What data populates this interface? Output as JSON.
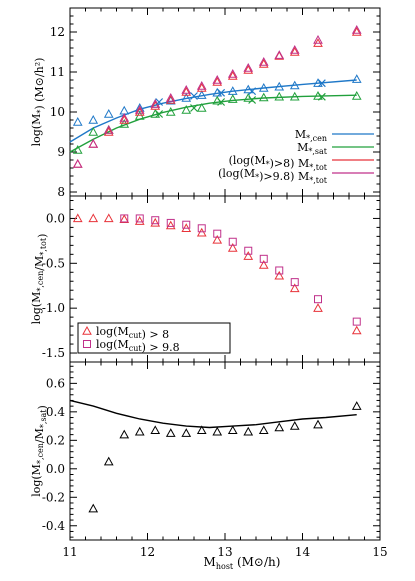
{
  "figure": {
    "xlabel": "M_host (M⊙/h)"
  },
  "chart_data": [
    {
      "type": "scatter",
      "panel": "top",
      "ylabel": "log(M*) (M⊙/h²)",
      "xlim": [
        11,
        15
      ],
      "ylim": [
        7.9,
        12.6
      ],
      "xticks": [
        11,
        12,
        13,
        14,
        15
      ],
      "yticks": [
        8,
        9,
        10,
        11,
        12
      ],
      "legend_position": "lower-right",
      "legend": [
        "M*,cen",
        "M*,sat",
        "(log(M*)>8) M*,tot",
        "(log(M*)>9.8) M*,tot"
      ],
      "colors": {
        "cen": "#1f78c8",
        "sat": "#21a03c",
        "tot8": "#e8333a",
        "tot98": "#c0308a"
      },
      "lines": [
        {
          "name": "M*,cen",
          "color": "#1f78c8",
          "x": [
            11.0,
            11.3,
            11.6,
            11.9,
            12.2,
            12.5,
            12.8,
            13.1,
            13.5,
            14.0,
            14.7
          ],
          "y": [
            9.25,
            9.6,
            9.85,
            10.07,
            10.22,
            10.34,
            10.44,
            10.52,
            10.6,
            10.69,
            10.8
          ]
        },
        {
          "name": "M*,sat",
          "color": "#21a03c",
          "x": [
            11.0,
            11.3,
            11.6,
            11.9,
            12.2,
            12.5,
            12.8,
            13.1,
            13.5,
            14.0,
            14.7
          ],
          "y": [
            9.0,
            9.32,
            9.6,
            9.82,
            9.99,
            10.12,
            10.22,
            10.29,
            10.35,
            10.39,
            10.42
          ]
        }
      ],
      "series": [
        {
          "name": "M*,cen",
          "marker": "triangle",
          "color": "#1f78c8",
          "x": [
            11.1,
            11.3,
            11.5,
            11.7,
            11.9,
            12.1,
            12.3,
            12.5,
            12.7,
            12.9,
            13.1,
            13.3,
            13.5,
            13.7,
            13.9,
            14.2,
            14.7
          ],
          "y": [
            9.75,
            9.8,
            9.95,
            10.03,
            10.1,
            10.2,
            10.28,
            10.35,
            10.42,
            10.48,
            10.52,
            10.56,
            10.6,
            10.63,
            10.66,
            10.72,
            10.82
          ]
        },
        {
          "name": "M*,sat",
          "marker": "triangle",
          "color": "#21a03c",
          "x": [
            11.1,
            11.3,
            11.5,
            11.7,
            11.9,
            12.1,
            12.3,
            12.5,
            12.7,
            12.9,
            13.1,
            13.3,
            13.5,
            13.7,
            13.9,
            14.2,
            14.7
          ],
          "y": [
            9.05,
            9.5,
            9.55,
            9.7,
            9.9,
            9.95,
            10.0,
            10.05,
            10.1,
            10.28,
            10.32,
            10.35,
            10.36,
            10.38,
            10.38,
            10.4,
            10.4
          ]
        },
        {
          "name": "(log(M*)>8) M*,tot",
          "marker": "triangle",
          "color": "#e8333a",
          "x": [
            11.1,
            11.3,
            11.5,
            11.7,
            11.9,
            12.1,
            12.3,
            12.5,
            12.7,
            12.9,
            13.1,
            13.3,
            13.5,
            13.7,
            13.9,
            14.2,
            14.7
          ],
          "y": [
            8.7,
            9.2,
            9.5,
            9.8,
            10.0,
            10.15,
            10.3,
            10.5,
            10.6,
            10.75,
            10.9,
            11.05,
            11.2,
            11.4,
            11.5,
            11.72,
            12.0
          ]
        },
        {
          "name": "(log(M*)>9.8) M*,tot",
          "marker": "triangle",
          "color": "#c0308a",
          "x": [
            11.1,
            11.3,
            11.5,
            11.7,
            11.9,
            12.1,
            12.3,
            12.5,
            12.7,
            12.9,
            13.1,
            13.3,
            13.5,
            13.7,
            13.9,
            14.2,
            14.7
          ],
          "y": [
            8.7,
            9.2,
            9.55,
            9.85,
            10.05,
            10.2,
            10.35,
            10.55,
            10.65,
            10.8,
            10.95,
            11.1,
            11.25,
            11.42,
            11.55,
            11.8,
            12.05
          ]
        },
        {
          "name": "",
          "marker": "x",
          "color": "#1f78c8",
          "x": [
            12.15,
            12.6,
            12.95,
            13.35,
            14.25
          ],
          "y": [
            10.25,
            10.4,
            10.48,
            10.52,
            10.72
          ]
        },
        {
          "name": "",
          "marker": "x",
          "color": "#21a03c",
          "x": [
            12.15,
            12.6,
            12.95,
            13.35,
            14.25
          ],
          "y": [
            9.95,
            10.1,
            10.25,
            10.3,
            10.38
          ]
        }
      ]
    },
    {
      "type": "scatter",
      "panel": "middle",
      "ylabel": "log(M*,cen/M*,tot)",
      "xlim": [
        11,
        15
      ],
      "ylim": [
        -1.6,
        0.25
      ],
      "xticks": [
        11,
        12,
        13,
        14,
        15
      ],
      "yticks": [
        -1.5,
        -1.0,
        -0.5,
        0.0
      ],
      "legend_position": "lower-left",
      "legend": [
        "log(M_cut) > 8",
        "log(M_cut) > 9.8"
      ],
      "series": [
        {
          "name": "log(M_cut) > 8",
          "marker": "triangle",
          "color": "#e8333a",
          "x": [
            11.1,
            11.3,
            11.5,
            11.7,
            11.9,
            12.1,
            12.3,
            12.5,
            12.7,
            12.9,
            13.1,
            13.3,
            13.5,
            13.7,
            13.9,
            14.2,
            14.7
          ],
          "y": [
            0.0,
            0.0,
            0.0,
            -0.01,
            -0.03,
            -0.05,
            -0.08,
            -0.11,
            -0.16,
            -0.24,
            -0.33,
            -0.42,
            -0.52,
            -0.64,
            -0.78,
            -1.0,
            -1.25
          ]
        },
        {
          "name": "log(M_cut) > 9.8",
          "marker": "square",
          "color": "#c0308a",
          "x": [
            11.7,
            11.9,
            12.1,
            12.3,
            12.5,
            12.7,
            12.9,
            13.1,
            13.3,
            13.5,
            13.7,
            13.9,
            14.2,
            14.7
          ],
          "y": [
            0.0,
            0.0,
            -0.02,
            -0.05,
            -0.07,
            -0.11,
            -0.17,
            -0.26,
            -0.36,
            -0.45,
            -0.58,
            -0.71,
            -0.9,
            -1.15
          ]
        }
      ]
    },
    {
      "type": "scatter",
      "panel": "bottom",
      "ylabel": "log(M*,cen/M*,sat)",
      "xlim": [
        11,
        15
      ],
      "ylim": [
        -0.5,
        0.75
      ],
      "xticks": [
        11,
        12,
        13,
        14,
        15
      ],
      "yticks": [
        -0.4,
        -0.2,
        0.0,
        0.2,
        0.4,
        0.6
      ],
      "lines": [
        {
          "name": "",
          "color": "#000000",
          "x": [
            11.0,
            11.3,
            11.6,
            11.9,
            12.2,
            12.5,
            12.8,
            13.1,
            13.4,
            13.7,
            14.0,
            14.3,
            14.7
          ],
          "y": [
            0.48,
            0.44,
            0.39,
            0.35,
            0.32,
            0.3,
            0.29,
            0.3,
            0.31,
            0.33,
            0.35,
            0.36,
            0.38
          ]
        }
      ],
      "series": [
        {
          "name": "",
          "marker": "triangle",
          "color": "#000000",
          "x": [
            11.3,
            11.5,
            11.7,
            11.9,
            12.1,
            12.3,
            12.5,
            12.7,
            12.9,
            13.1,
            13.3,
            13.5,
            13.7,
            13.9,
            14.2,
            14.7
          ],
          "y": [
            -0.28,
            0.05,
            0.24,
            0.26,
            0.27,
            0.25,
            0.25,
            0.27,
            0.26,
            0.27,
            0.26,
            0.27,
            0.29,
            0.3,
            0.31,
            0.44
          ]
        }
      ]
    }
  ]
}
